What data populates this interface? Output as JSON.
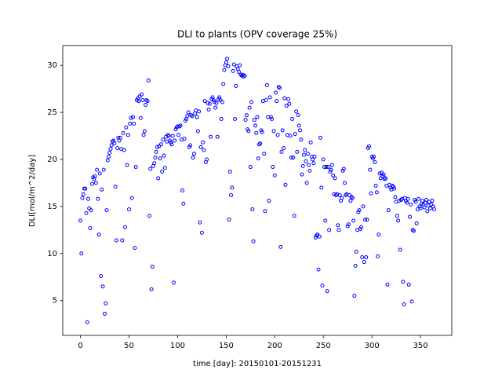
{
  "chart_data": {
    "type": "scatter",
    "title": "DLI to plants (OPV coverage 25%)",
    "xlabel": "time [day]:  20150101-20151231",
    "ylabel": "DLI[mol/m^2/day]",
    "color": "#0000ff",
    "xlim": [
      -18.2,
      382.2
    ],
    "ylim": [
      1.3,
      32.1
    ],
    "xticks": [
      0,
      50,
      100,
      150,
      200,
      250,
      300,
      350
    ],
    "yticks": [
      5,
      10,
      15,
      20,
      25,
      30
    ],
    "x": [
      0,
      1,
      2,
      3,
      4,
      5,
      6,
      7,
      8,
      9,
      10,
      11,
      12,
      13,
      14,
      15,
      16,
      17,
      18,
      19,
      20,
      21,
      22,
      23,
      24,
      25,
      26,
      27,
      28,
      29,
      30,
      31,
      32,
      33,
      34,
      35,
      36,
      37,
      38,
      39,
      40,
      41,
      42,
      43,
      44,
      45,
      46,
      47,
      48,
      49,
      50,
      51,
      52,
      53,
      54,
      55,
      56,
      57,
      58,
      59,
      60,
      61,
      62,
      63,
      64,
      65,
      66,
      67,
      68,
      69,
      70,
      71,
      72,
      73,
      74,
      75,
      76,
      77,
      78,
      79,
      80,
      81,
      82,
      83,
      84,
      85,
      86,
      87,
      88,
      89,
      90,
      91,
      92,
      93,
      94,
      95,
      96,
      97,
      98,
      99,
      100,
      101,
      102,
      103,
      104,
      105,
      106,
      107,
      108,
      109,
      110,
      111,
      112,
      113,
      114,
      115,
      116,
      117,
      118,
      119,
      120,
      121,
      122,
      123,
      124,
      125,
      126,
      127,
      128,
      129,
      130,
      131,
      132,
      133,
      134,
      135,
      136,
      137,
      138,
      139,
      140,
      141,
      142,
      143,
      144,
      145,
      146,
      147,
      148,
      149,
      150,
      151,
      152,
      153,
      154,
      155,
      156,
      157,
      158,
      159,
      160,
      161,
      162,
      163,
      164,
      165,
      166,
      167,
      168,
      169,
      170,
      171,
      172,
      173,
      174,
      175,
      176,
      177,
      178,
      179,
      180,
      181,
      182,
      183,
      184,
      185,
      186,
      187,
      188,
      189,
      190,
      191,
      192,
      193,
      194,
      195,
      196,
      197,
      198,
      199,
      200,
      201,
      202,
      203,
      204,
      205,
      206,
      207,
      208,
      209,
      210,
      211,
      212,
      213,
      214,
      215,
      216,
      217,
      218,
      219,
      220,
      221,
      222,
      223,
      224,
      225,
      226,
      227,
      228,
      229,
      230,
      231,
      232,
      233,
      234,
      235,
      236,
      237,
      238,
      239,
      240,
      241,
      242,
      243,
      244,
      245,
      246,
      247,
      248,
      249,
      250,
      251,
      252,
      253,
      254,
      255,
      256,
      257,
      258,
      259,
      260,
      261,
      262,
      263,
      264,
      265,
      266,
      267,
      268,
      269,
      270,
      271,
      272,
      273,
      274,
      275,
      276,
      277,
      278,
      279,
      280,
      281,
      282,
      283,
      284,
      285,
      286,
      287,
      288,
      289,
      290,
      291,
      292,
      293,
      294,
      295,
      296,
      297,
      298,
      299,
      300,
      301,
      302,
      303,
      304,
      305,
      306,
      307,
      308,
      309,
      310,
      311,
      312,
      313,
      314,
      315,
      316,
      317,
      318,
      319,
      320,
      321,
      322,
      323,
      324,
      325,
      326,
      327,
      328,
      329,
      330,
      331,
      332,
      333,
      334,
      335,
      336,
      337,
      338,
      339,
      340,
      341,
      342,
      343,
      344,
      345,
      346,
      347,
      348,
      349,
      350,
      351,
      352,
      353,
      354,
      355,
      356,
      357,
      358,
      359,
      360,
      361,
      362,
      363,
      364
    ],
    "values": [
      13.5,
      10.0,
      15.9,
      16.3,
      16.9,
      16.9,
      14.3,
      2.7,
      15.8,
      14.8,
      12.7,
      14.6,
      17.4,
      18.1,
      17.9,
      18.2,
      17.5,
      18.9,
      15.8,
      12.0,
      18.5,
      7.6,
      16.8,
      6.5,
      18.9,
      3.6,
      4.7,
      14.6,
      19.9,
      20.3,
      20.7,
      21.1,
      21.5,
      21.9,
      22.0,
      21.7,
      17.1,
      11.4,
      21.2,
      22.3,
      22.0,
      22.3,
      21.1,
      11.4,
      22.8,
      21.0,
      12.8,
      23.4,
      19.4,
      22.6,
      14.7,
      23.8,
      24.4,
      15.9,
      24.5,
      23.8,
      10.6,
      19.2,
      26.3,
      26.5,
      26.2,
      26.7,
      24.4,
      26.9,
      26.3,
      22.6,
      23.0,
      25.8,
      26.3,
      26.2,
      28.4,
      14.0,
      19.0,
      6.2,
      8.6,
      19.3,
      19.6,
      20.2,
      20.8,
      21.3,
      18.0,
      21.4,
      20.1,
      21.6,
      18.7,
      22.1,
      20.4,
      19.1,
      22.4,
      21.9,
      22.6,
      22.5,
      22.0,
      21.8,
      21.6,
      22.5,
      6.9,
      22.0,
      23.2,
      23.4,
      23.5,
      22.6,
      23.5,
      23.6,
      22.1,
      16.7,
      15.3,
      22.2,
      24.1,
      24.3,
      24.6,
      25.0,
      21.3,
      21.5,
      24.7,
      24.6,
      20.2,
      20.6,
      24.9,
      25.2,
      24.5,
      23.0,
      25.1,
      13.3,
      21.3,
      12.2,
      21.8,
      21.0,
      26.2,
      19.7,
      20.0,
      26.0,
      25.3,
      25.9,
      22.4,
      26.4,
      26.6,
      26.3,
      26.1,
      25.5,
      26.0,
      22.4,
      26.4,
      26.6,
      26.3,
      24.3,
      26.1,
      28.0,
      29.5,
      30.0,
      30.3,
      30.7,
      29.9,
      13.6,
      18.7,
      16.2,
      17.0,
      29.4,
      30.1,
      24.3,
      27.8,
      29.9,
      29.6,
      29.3,
      30.0,
      29.0,
      28.9,
      29.0,
      28.8,
      28.9,
      24.2,
      24.7,
      23.2,
      23.0,
      25.5,
      19.2,
      26.1,
      14.7,
      11.3,
      24.2,
      23.6,
      22.8,
      24.5,
      20.1,
      21.6,
      21.7,
      23.1,
      22.9,
      26.2,
      20.6,
      14.5,
      26.3,
      27.9,
      24.5,
      15.6,
      26.6,
      24.5,
      24.3,
      19.2,
      23.0,
      18.3,
      27.1,
      26.2,
      22.6,
      27.7,
      27.6,
      10.7,
      20.8,
      23.1,
      21.2,
      26.5,
      17.3,
      25.7,
      22.6,
      26.4,
      25.9,
      22.5,
      20.2,
      24.3,
      20.2,
      14.0,
      22.7,
      25.1,
      20.8,
      24.7,
      23.6,
      23.1,
      22.1,
      18.4,
      19.3,
      20.5,
      21.0,
      19.8,
      17.5,
      20.6,
      19.4,
      18.8,
      21.8,
      20.3,
      20.0,
      19.6,
      20.3,
      11.7,
      11.9,
      12.0,
      8.3,
      11.8,
      22.3,
      17.0,
      6.6,
      20.0,
      19.2,
      13.5,
      19.2,
      6.0,
      19.2,
      12.5,
      18.7,
      18.9,
      19.4,
      18.3,
      16.3,
      18.0,
      16.2,
      16.3,
      13.0,
      12.5,
      16.2,
      15.6,
      15.9,
      18.8,
      19.0,
      17.5,
      16.2,
      16.3,
      12.9,
      13.1,
      16.2,
      15.6,
      16.0,
      15.9,
      13.5,
      5.5,
      8.7,
      10.2,
      12.5,
      14.4,
      14.6,
      12.6,
      12.8,
      9.6,
      15.0,
      9.1,
      13.6,
      9.6,
      13.6,
      21.2,
      21.4,
      18.9,
      16.4,
      20.3,
      20.1,
      20.3,
      19.7,
      17.2,
      16.5,
      9.7,
      12.0,
      18.5,
      18.0,
      18.6,
      18.2,
      18.4,
      17.9,
      18.0,
      17.2,
      6.7,
      14.6,
      17.3,
      17.0,
      16.8,
      17.2,
      17.1,
      16.9,
      16.0,
      15.5,
      14.0,
      13.5,
      15.6,
      10.4,
      15.7,
      15.8,
      7.0,
      4.6,
      15.9,
      15.6,
      15.4,
      15.8,
      6.7,
      13.9,
      15.2,
      4.9,
      12.5,
      12.4,
      15.7,
      15.5,
      13.2,
      14.7,
      15.8,
      15.0,
      14.8,
      15.3,
      15.6,
      15.2,
      14.9,
      15.4,
      15.7,
      14.5,
      15.1,
      15.5,
      14.8,
      15.2,
      15.6,
      15.0,
      14.7
    ]
  }
}
